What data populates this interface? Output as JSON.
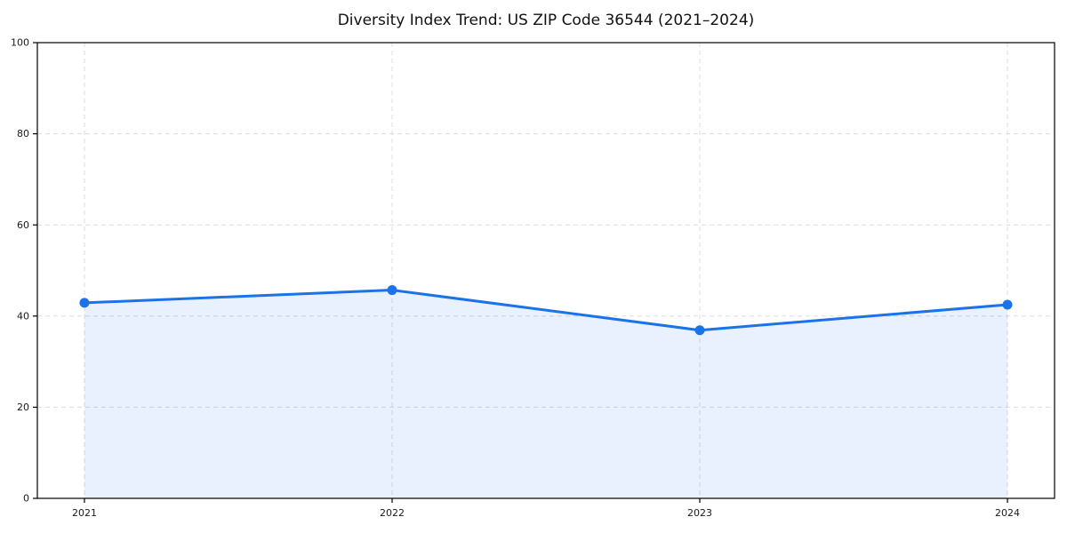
{
  "chart_data": {
    "type": "area",
    "title": "Diversity Index Trend: US ZIP Code 36544 (2021–2024)",
    "categories": [
      "2021",
      "2022",
      "2023",
      "2024"
    ],
    "series": [
      {
        "name": "Diversity Index",
        "values": [
          42.9,
          45.7,
          36.9,
          42.5
        ]
      }
    ],
    "xlabel": "",
    "ylabel": "",
    "ylim": [
      0,
      100
    ],
    "yticks": [
      0,
      20,
      40,
      60,
      80,
      100
    ],
    "grid": "dashed-both-axes",
    "legend_position": "none",
    "colors": {
      "line": "#1a73e8",
      "marker": "#1a73e8",
      "fill": "#1a73e8",
      "fill_opacity": 0.1,
      "gridline": "#dcdcdc",
      "spine": "#000000",
      "tick_label": "#1a1a1a",
      "background": "#ffffff"
    },
    "style": {
      "line_width": 3,
      "marker_radius": 5.5,
      "tick_font_size": 11,
      "title_font_size": 17
    }
  }
}
